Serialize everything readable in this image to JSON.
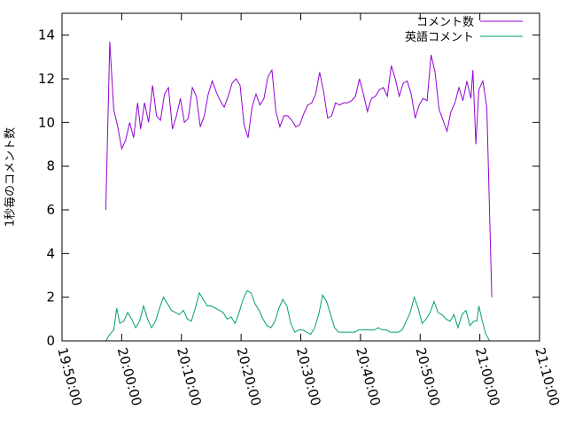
{
  "chart_data": {
    "type": "line",
    "title": "",
    "xlabel": "",
    "ylabel": "1秒毎のコメント数",
    "x_range": [
      "19:50:00",
      "21:10:00"
    ],
    "ylim": [
      0,
      15
    ],
    "x_ticks": [
      "19:50:00",
      "20:00:00",
      "20:10:00",
      "20:20:00",
      "20:30:00",
      "20:40:00",
      "20:50:00",
      "21:00:00",
      "21:10:00"
    ],
    "y_ticks": [
      0,
      2,
      4,
      6,
      8,
      10,
      12,
      14
    ],
    "grid": false,
    "legend_position": "top-right",
    "series": [
      {
        "name": "コメント数",
        "color": "#9400d3",
        "points": [
          [
            "19:57:20",
            6.0
          ],
          [
            "19:58:00",
            13.7
          ],
          [
            "19:58:40",
            10.6
          ],
          [
            "19:59:20",
            9.8
          ],
          [
            "20:00:00",
            8.8
          ],
          [
            "20:00:40",
            9.2
          ],
          [
            "20:01:20",
            10.0
          ],
          [
            "20:02:00",
            9.3
          ],
          [
            "20:02:40",
            10.9
          ],
          [
            "20:03:10",
            9.7
          ],
          [
            "20:03:50",
            10.9
          ],
          [
            "20:04:30",
            10.0
          ],
          [
            "20:05:10",
            11.7
          ],
          [
            "20:05:50",
            10.3
          ],
          [
            "20:06:30",
            10.1
          ],
          [
            "20:07:10",
            11.3
          ],
          [
            "20:07:50",
            11.6
          ],
          [
            "20:08:30",
            9.7
          ],
          [
            "20:09:10",
            10.3
          ],
          [
            "20:09:50",
            11.1
          ],
          [
            "20:10:30",
            10.0
          ],
          [
            "20:11:10",
            10.2
          ],
          [
            "20:11:50",
            11.6
          ],
          [
            "20:12:30",
            11.2
          ],
          [
            "20:13:10",
            9.8
          ],
          [
            "20:13:50",
            10.3
          ],
          [
            "20:14:30",
            11.3
          ],
          [
            "20:15:10",
            11.9
          ],
          [
            "20:15:50",
            11.4
          ],
          [
            "20:16:30",
            11.0
          ],
          [
            "20:17:10",
            10.7
          ],
          [
            "20:17:50",
            11.2
          ],
          [
            "20:18:30",
            11.8
          ],
          [
            "20:19:10",
            12.0
          ],
          [
            "20:19:50",
            11.7
          ],
          [
            "20:20:30",
            9.9
          ],
          [
            "20:21:10",
            9.3
          ],
          [
            "20:21:50",
            10.7
          ],
          [
            "20:22:30",
            11.3
          ],
          [
            "20:23:10",
            10.8
          ],
          [
            "20:23:50",
            11.1
          ],
          [
            "20:24:30",
            12.1
          ],
          [
            "20:25:10",
            12.4
          ],
          [
            "20:25:50",
            10.5
          ],
          [
            "20:26:30",
            9.8
          ],
          [
            "20:27:10",
            10.3
          ],
          [
            "20:27:50",
            10.3
          ],
          [
            "20:28:30",
            10.1
          ],
          [
            "20:29:10",
            9.8
          ],
          [
            "20:29:50",
            9.9
          ],
          [
            "20:30:30",
            10.4
          ],
          [
            "20:31:10",
            10.8
          ],
          [
            "20:31:50",
            10.9
          ],
          [
            "20:32:30",
            11.3
          ],
          [
            "20:33:10",
            12.3
          ],
          [
            "20:33:50",
            11.4
          ],
          [
            "20:34:30",
            10.2
          ],
          [
            "20:35:10",
            10.3
          ],
          [
            "20:35:50",
            10.9
          ],
          [
            "20:36:30",
            10.8
          ],
          [
            "20:37:10",
            10.9
          ],
          [
            "20:37:50",
            10.9
          ],
          [
            "20:38:30",
            11.0
          ],
          [
            "20:39:10",
            11.2
          ],
          [
            "20:39:50",
            12.0
          ],
          [
            "20:40:30",
            11.3
          ],
          [
            "20:41:10",
            10.5
          ],
          [
            "20:41:50",
            11.1
          ],
          [
            "20:42:30",
            11.2
          ],
          [
            "20:43:10",
            11.5
          ],
          [
            "20:43:50",
            11.6
          ],
          [
            "20:44:30",
            11.2
          ],
          [
            "20:45:10",
            12.6
          ],
          [
            "20:45:50",
            12.0
          ],
          [
            "20:46:30",
            11.2
          ],
          [
            "20:47:10",
            11.8
          ],
          [
            "20:47:50",
            11.9
          ],
          [
            "20:48:30",
            11.3
          ],
          [
            "20:49:10",
            10.2
          ],
          [
            "20:49:50",
            10.8
          ],
          [
            "20:50:30",
            11.1
          ],
          [
            "20:51:10",
            11.0
          ],
          [
            "20:51:50",
            13.1
          ],
          [
            "20:52:30",
            12.3
          ],
          [
            "20:53:10",
            10.6
          ],
          [
            "20:53:50",
            10.1
          ],
          [
            "20:54:30",
            9.6
          ],
          [
            "20:55:10",
            10.5
          ],
          [
            "20:55:50",
            10.9
          ],
          [
            "20:56:30",
            11.6
          ],
          [
            "20:57:10",
            11.0
          ],
          [
            "20:57:50",
            11.9
          ],
          [
            "20:58:30",
            11.1
          ],
          [
            "20:58:50",
            12.4
          ],
          [
            "20:59:20",
            9.0
          ],
          [
            "20:59:50",
            11.5
          ],
          [
            "21:00:30",
            11.9
          ],
          [
            "21:01:10",
            10.7
          ],
          [
            "21:02:00",
            2.0
          ]
        ]
      },
      {
        "name": "英語コメント",
        "color": "#009e73",
        "points": [
          [
            "19:57:20",
            0.0
          ],
          [
            "19:58:00",
            0.3
          ],
          [
            "19:58:40",
            0.5
          ],
          [
            "19:59:10",
            1.5
          ],
          [
            "19:59:40",
            0.8
          ],
          [
            "20:00:20",
            0.9
          ],
          [
            "20:01:00",
            1.3
          ],
          [
            "20:01:40",
            1.0
          ],
          [
            "20:02:20",
            0.6
          ],
          [
            "20:03:00",
            0.9
          ],
          [
            "20:03:40",
            1.6
          ],
          [
            "20:04:20",
            1.0
          ],
          [
            "20:05:00",
            0.6
          ],
          [
            "20:05:40",
            0.9
          ],
          [
            "20:06:20",
            1.5
          ],
          [
            "20:07:00",
            2.0
          ],
          [
            "20:07:40",
            1.7
          ],
          [
            "20:08:20",
            1.4
          ],
          [
            "20:09:00",
            1.3
          ],
          [
            "20:09:40",
            1.2
          ],
          [
            "20:10:20",
            1.4
          ],
          [
            "20:11:00",
            1.0
          ],
          [
            "20:11:40",
            0.9
          ],
          [
            "20:12:20",
            1.5
          ],
          [
            "20:13:00",
            2.2
          ],
          [
            "20:13:40",
            1.9
          ],
          [
            "20:14:20",
            1.6
          ],
          [
            "20:15:00",
            1.6
          ],
          [
            "20:15:40",
            1.5
          ],
          [
            "20:16:20",
            1.4
          ],
          [
            "20:17:00",
            1.3
          ],
          [
            "20:17:40",
            1.0
          ],
          [
            "20:18:20",
            1.1
          ],
          [
            "20:19:00",
            0.8
          ],
          [
            "20:19:40",
            1.3
          ],
          [
            "20:20:20",
            1.9
          ],
          [
            "20:21:00",
            2.3
          ],
          [
            "20:21:40",
            2.2
          ],
          [
            "20:22:20",
            1.7
          ],
          [
            "20:23:00",
            1.4
          ],
          [
            "20:23:40",
            1.0
          ],
          [
            "20:24:20",
            0.7
          ],
          [
            "20:25:00",
            0.6
          ],
          [
            "20:25:40",
            0.9
          ],
          [
            "20:26:20",
            1.5
          ],
          [
            "20:27:00",
            1.9
          ],
          [
            "20:27:40",
            1.6
          ],
          [
            "20:28:20",
            0.8
          ],
          [
            "20:29:00",
            0.4
          ],
          [
            "20:29:40",
            0.5
          ],
          [
            "20:30:20",
            0.5
          ],
          [
            "20:31:00",
            0.4
          ],
          [
            "20:31:40",
            0.3
          ],
          [
            "20:32:20",
            0.6
          ],
          [
            "20:33:00",
            1.2
          ],
          [
            "20:33:40",
            2.1
          ],
          [
            "20:34:20",
            1.8
          ],
          [
            "20:35:00",
            1.2
          ],
          [
            "20:35:40",
            0.6
          ],
          [
            "20:36:20",
            0.4
          ],
          [
            "20:37:00",
            0.4
          ],
          [
            "20:37:40",
            0.4
          ],
          [
            "20:38:20",
            0.4
          ],
          [
            "20:39:00",
            0.4
          ],
          [
            "20:39:40",
            0.5
          ],
          [
            "20:40:20",
            0.5
          ],
          [
            "20:41:00",
            0.5
          ],
          [
            "20:41:40",
            0.5
          ],
          [
            "20:42:20",
            0.5
          ],
          [
            "20:43:00",
            0.6
          ],
          [
            "20:43:40",
            0.5
          ],
          [
            "20:44:20",
            0.5
          ],
          [
            "20:45:00",
            0.4
          ],
          [
            "20:45:40",
            0.4
          ],
          [
            "20:46:20",
            0.4
          ],
          [
            "20:47:00",
            0.5
          ],
          [
            "20:47:40",
            0.9
          ],
          [
            "20:48:20",
            1.3
          ],
          [
            "20:49:00",
            2.0
          ],
          [
            "20:49:40",
            1.5
          ],
          [
            "20:50:20",
            0.8
          ],
          [
            "20:51:00",
            1.0
          ],
          [
            "20:51:40",
            1.3
          ],
          [
            "20:52:20",
            1.8
          ],
          [
            "20:53:00",
            1.3
          ],
          [
            "20:53:40",
            1.2
          ],
          [
            "20:54:20",
            1.0
          ],
          [
            "20:55:00",
            0.9
          ],
          [
            "20:55:40",
            1.2
          ],
          [
            "20:56:20",
            0.6
          ],
          [
            "20:57:00",
            1.2
          ],
          [
            "20:57:40",
            1.4
          ],
          [
            "20:58:20",
            0.7
          ],
          [
            "20:59:00",
            0.9
          ],
          [
            "20:59:30",
            0.9
          ],
          [
            "20:59:50",
            1.6
          ],
          [
            "21:00:20",
            1.0
          ],
          [
            "21:01:00",
            0.3
          ],
          [
            "21:01:40",
            0.0
          ]
        ]
      }
    ]
  }
}
